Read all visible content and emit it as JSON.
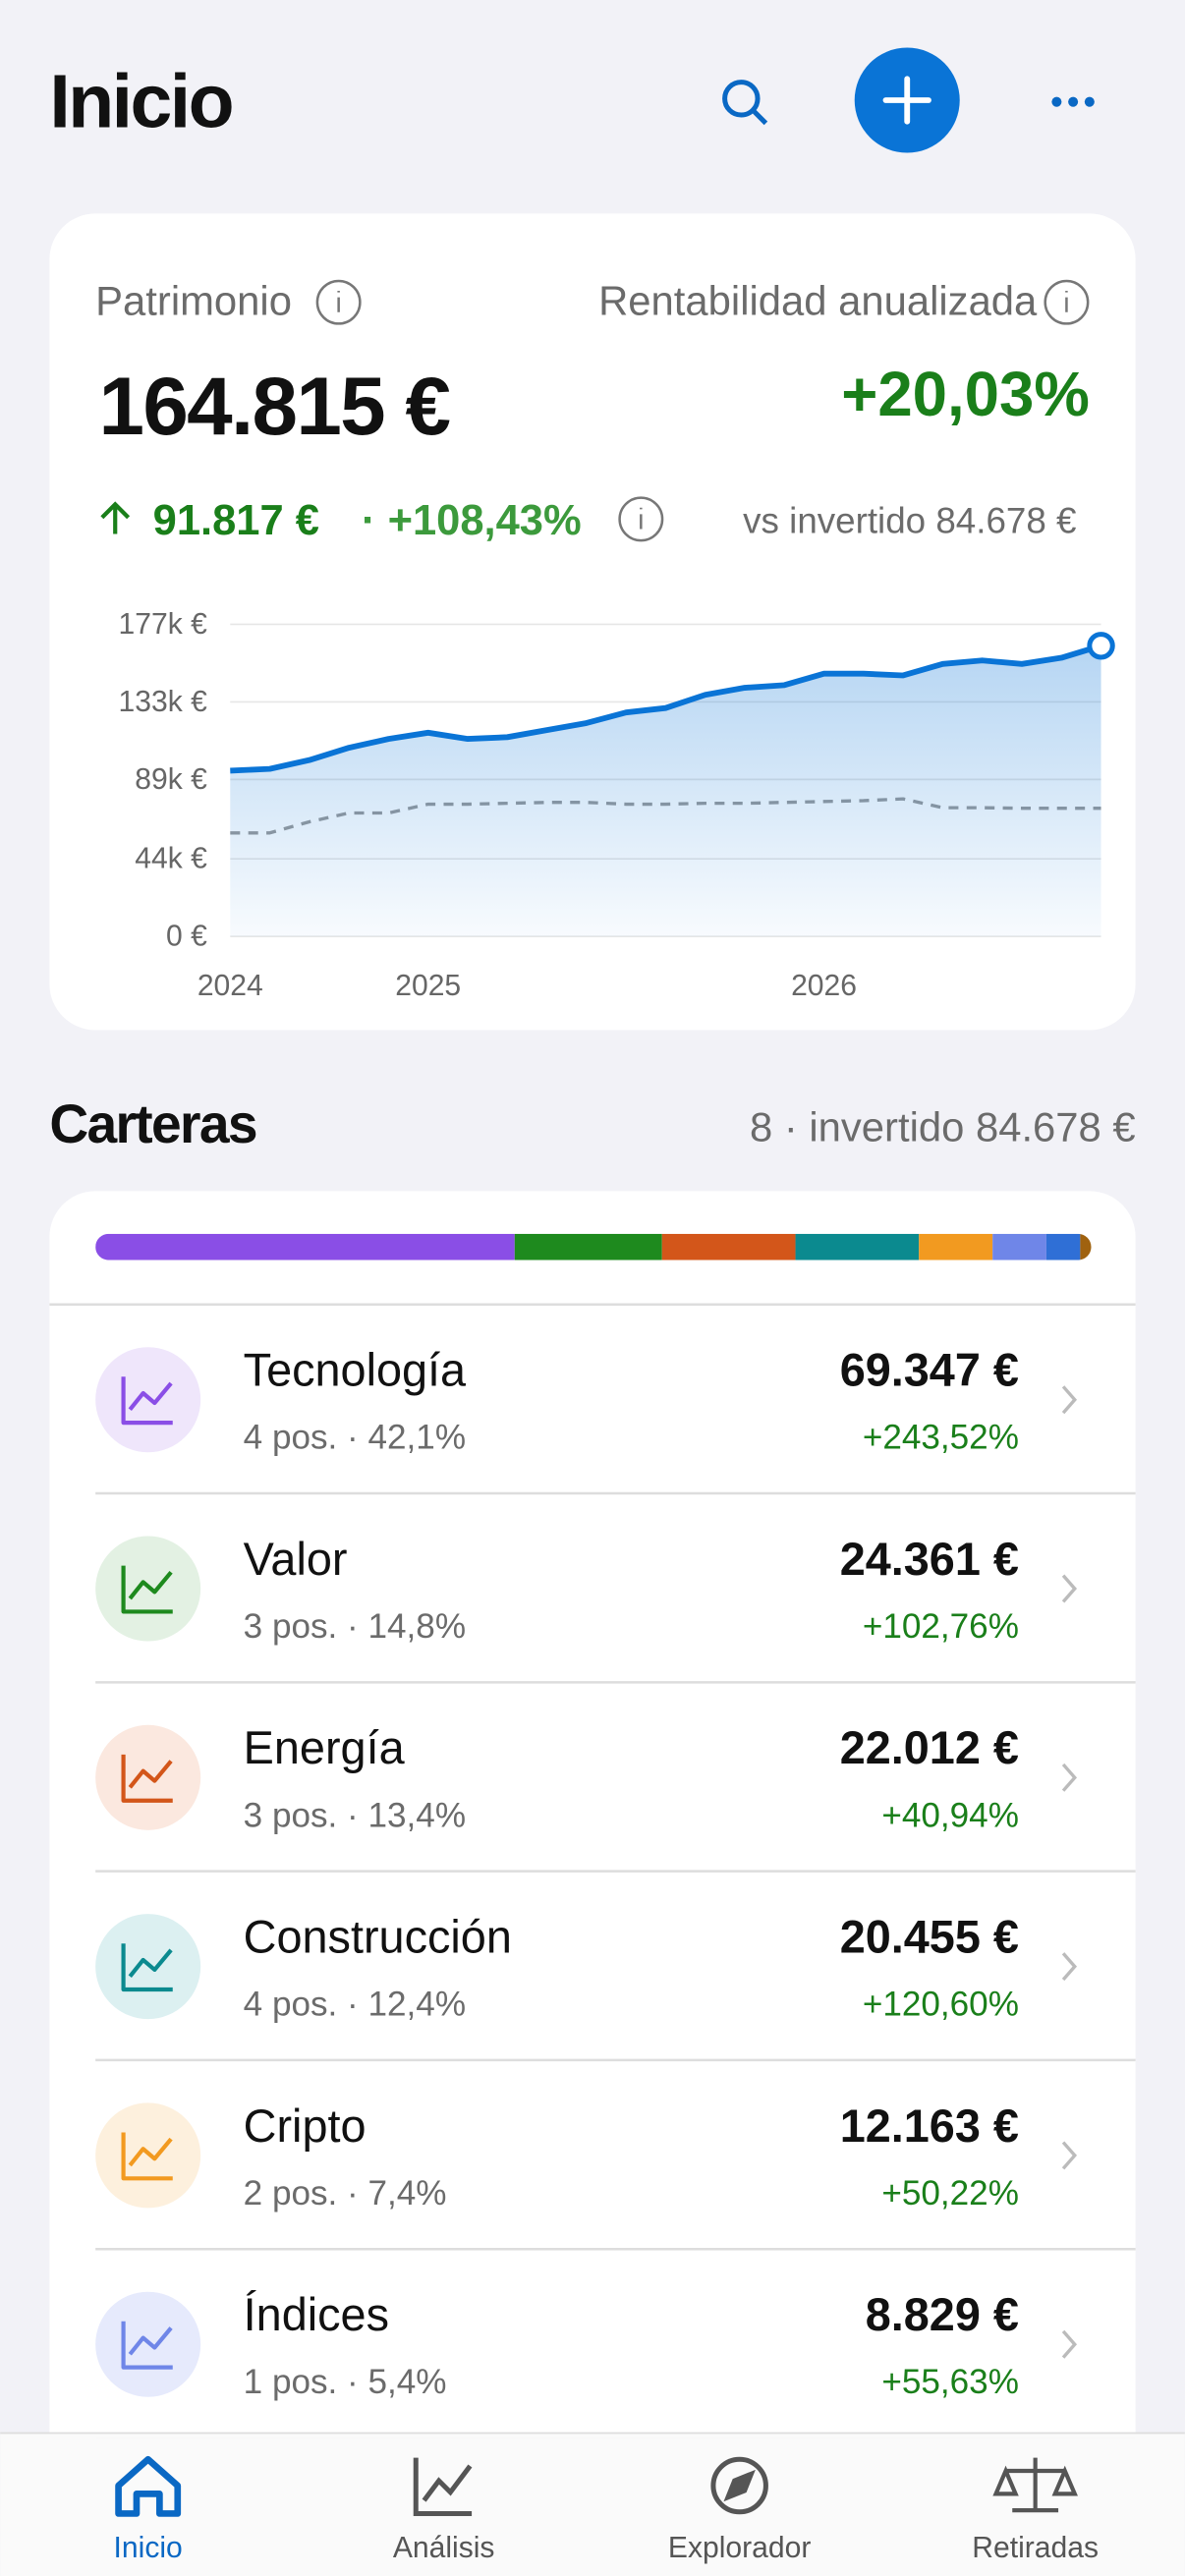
{
  "header": {
    "title": "Inicio"
  },
  "summary": {
    "net_worth_label": "Patrimonio",
    "net_worth": "164.815 €",
    "return_label": "Rentabilidad anualizada",
    "return": "+20,03%",
    "gain": "91.817 €",
    "gain_pct": "· +108,43%",
    "invested_note": "vs invertido 84.678 €"
  },
  "chart": {
    "type": "line",
    "x": [
      0,
      1,
      2,
      3,
      4,
      5,
      6,
      7,
      8,
      9,
      10,
      11,
      12,
      13,
      14,
      15,
      16,
      17,
      18,
      19,
      20,
      21,
      22
    ],
    "xlim": [
      0,
      22
    ],
    "xticks": [
      {
        "value": 0,
        "label": "2024"
      },
      {
        "value": 5,
        "label": "2025"
      },
      {
        "value": 15,
        "label": "2026"
      }
    ],
    "ylim": [
      0,
      177000
    ],
    "yticks": [
      {
        "value": 0,
        "label": "0 €"
      },
      {
        "value": 44000,
        "label": "44k €"
      },
      {
        "value": 89000,
        "label": "89k €"
      },
      {
        "value": 133000,
        "label": "133k €"
      },
      {
        "value": 177000,
        "label": "177k €"
      }
    ],
    "grid": true,
    "series": [
      {
        "color": "#0a74d6",
        "values": [
          94000,
          95000,
          100000,
          107000,
          112000,
          115500,
          112000,
          113000,
          117000,
          121000,
          127000,
          129500,
          137000,
          141000,
          142500,
          149000,
          149000,
          148000,
          154500,
          156500,
          154500,
          158000,
          164815
        ]
      },
      {
        "color": "#9a9a9a",
        "dashed": true,
        "values": [
          58700,
          58700,
          65000,
          70000,
          70000,
          75000,
          75000,
          75500,
          76000,
          76000,
          75000,
          75000,
          75500,
          75500,
          76000,
          76500,
          77000,
          78000,
          73000,
          73000,
          72700,
          72700,
          72700
        ]
      }
    ]
  },
  "portfolios": {
    "title": "Carteras",
    "summary": "8 · invertido 84.678 €",
    "items": [
      {
        "name": "Tecnología",
        "subtitle": "4 pos. · 42,1%",
        "value": "69.347 €",
        "change": "+243,52%",
        "share": 42.1,
        "color": "#8a4ee6",
        "tint": "#efe6fb"
      },
      {
        "name": "Valor",
        "subtitle": "3 pos. · 14,8%",
        "value": "24.361 €",
        "change": "+102,76%",
        "share": 14.8,
        "color": "#1e8a1e",
        "tint": "#e3f1e3"
      },
      {
        "name": "Energía",
        "subtitle": "3 pos. · 13,4%",
        "value": "22.012 €",
        "change": "+40,94%",
        "share": 13.4,
        "color": "#d3561a",
        "tint": "#fbe8df"
      },
      {
        "name": "Construcción",
        "subtitle": "4 pos. · 12,4%",
        "value": "20.455 €",
        "change": "+120,60%",
        "share": 12.4,
        "color": "#0b8a8f",
        "tint": "#dcf0f1"
      },
      {
        "name": "Cripto",
        "subtitle": "2 pos. · 7,4%",
        "value": "12.163 €",
        "change": "+50,22%",
        "share": 7.4,
        "color": "#f29a20",
        "tint": "#fdf0dd"
      },
      {
        "name": "Índices",
        "subtitle": "1 pos. · 5,4%",
        "value": "8.829 €",
        "change": "+55,63%",
        "share": 5.4,
        "color": "#6f86e8",
        "tint": "#e6eafc"
      }
    ],
    "other_shares": [
      {
        "share": 3.4,
        "color": "#2f6fd6"
      },
      {
        "share": 1.1,
        "color": "#a0620f"
      }
    ]
  },
  "nav": {
    "items": [
      {
        "label": "Inicio",
        "active": true
      },
      {
        "label": "Análisis",
        "active": false
      },
      {
        "label": "Explorador",
        "active": false
      },
      {
        "label": "Retiradas",
        "active": false
      }
    ]
  }
}
